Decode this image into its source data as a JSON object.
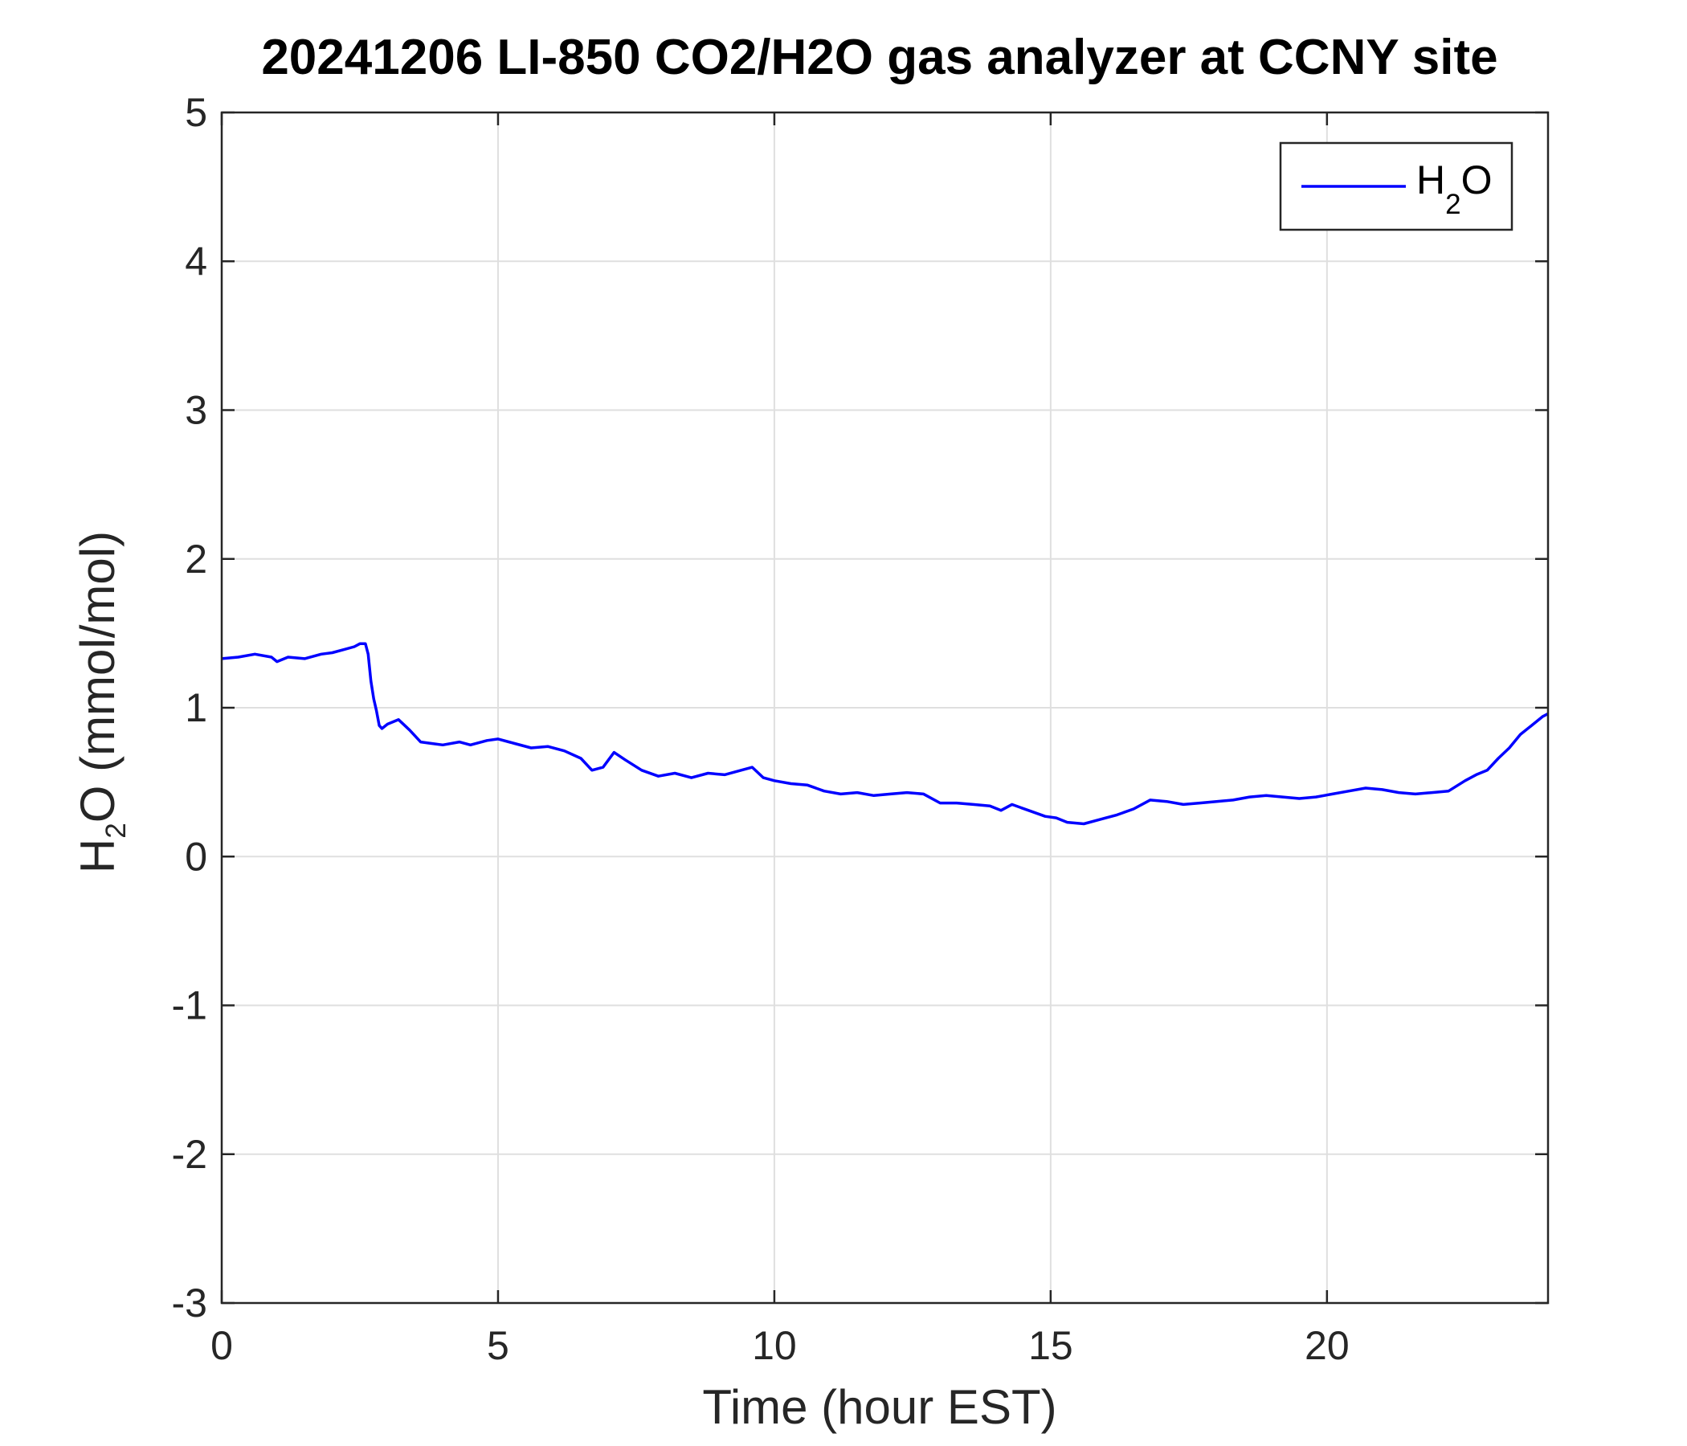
{
  "chart_data": {
    "type": "line",
    "title": "20241206 LI-850 CO2/H2O gas analyzer at CCNY site",
    "xlabel": "Time (hour EST)",
    "ylabel": {
      "main": "H",
      "sub": "2",
      "rest": "O (mmol/mol)"
    },
    "xlim": [
      0,
      24
    ],
    "ylim": [
      -3,
      5
    ],
    "xticks": [
      0,
      5,
      10,
      15,
      20
    ],
    "yticks": [
      -3,
      -2,
      -1,
      0,
      1,
      2,
      3,
      4,
      5
    ],
    "grid": true,
    "legend_position": "top-right",
    "series": [
      {
        "name": {
          "main": "H",
          "sub": "2",
          "rest": "O"
        },
        "color": "#0000ff",
        "x": [
          0,
          0.3,
          0.6,
          0.9,
          1.0,
          1.2,
          1.5,
          1.8,
          2.0,
          2.2,
          2.4,
          2.5,
          2.6,
          2.65,
          2.7,
          2.75,
          2.8,
          2.85,
          2.9,
          3.0,
          3.2,
          3.4,
          3.6,
          3.8,
          4.0,
          4.3,
          4.5,
          4.8,
          5.0,
          5.3,
          5.6,
          5.9,
          6.2,
          6.5,
          6.7,
          6.9,
          7.1,
          7.3,
          7.6,
          7.9,
          8.2,
          8.5,
          8.8,
          9.1,
          9.4,
          9.6,
          9.8,
          10.0,
          10.3,
          10.6,
          10.9,
          11.2,
          11.5,
          11.8,
          12.1,
          12.4,
          12.7,
          13.0,
          13.3,
          13.6,
          13.9,
          14.1,
          14.3,
          14.6,
          14.9,
          15.1,
          15.3,
          15.6,
          15.9,
          16.2,
          16.5,
          16.8,
          17.1,
          17.4,
          17.7,
          18.0,
          18.3,
          18.6,
          18.9,
          19.2,
          19.5,
          19.8,
          20.1,
          20.4,
          20.7,
          21.0,
          21.3,
          21.6,
          21.9,
          22.2,
          22.5,
          22.7,
          22.9,
          23.1,
          23.3,
          23.5,
          23.7,
          23.9,
          24.0
        ],
        "y": [
          1.33,
          1.34,
          1.36,
          1.34,
          1.31,
          1.34,
          1.33,
          1.36,
          1.37,
          1.39,
          1.41,
          1.43,
          1.43,
          1.36,
          1.18,
          1.06,
          0.98,
          0.88,
          0.86,
          0.89,
          0.92,
          0.85,
          0.77,
          0.76,
          0.75,
          0.77,
          0.75,
          0.78,
          0.79,
          0.76,
          0.73,
          0.74,
          0.71,
          0.66,
          0.58,
          0.6,
          0.7,
          0.65,
          0.58,
          0.54,
          0.56,
          0.53,
          0.56,
          0.55,
          0.58,
          0.6,
          0.53,
          0.51,
          0.49,
          0.48,
          0.44,
          0.42,
          0.43,
          0.41,
          0.42,
          0.43,
          0.42,
          0.36,
          0.36,
          0.35,
          0.34,
          0.31,
          0.35,
          0.31,
          0.27,
          0.26,
          0.23,
          0.22,
          0.25,
          0.28,
          0.32,
          0.38,
          0.37,
          0.35,
          0.36,
          0.37,
          0.38,
          0.4,
          0.41,
          0.4,
          0.39,
          0.4,
          0.42,
          0.44,
          0.46,
          0.45,
          0.43,
          0.42,
          0.43,
          0.44,
          0.51,
          0.55,
          0.58,
          0.66,
          0.73,
          0.82,
          0.88,
          0.94,
          0.96
        ]
      }
    ]
  }
}
